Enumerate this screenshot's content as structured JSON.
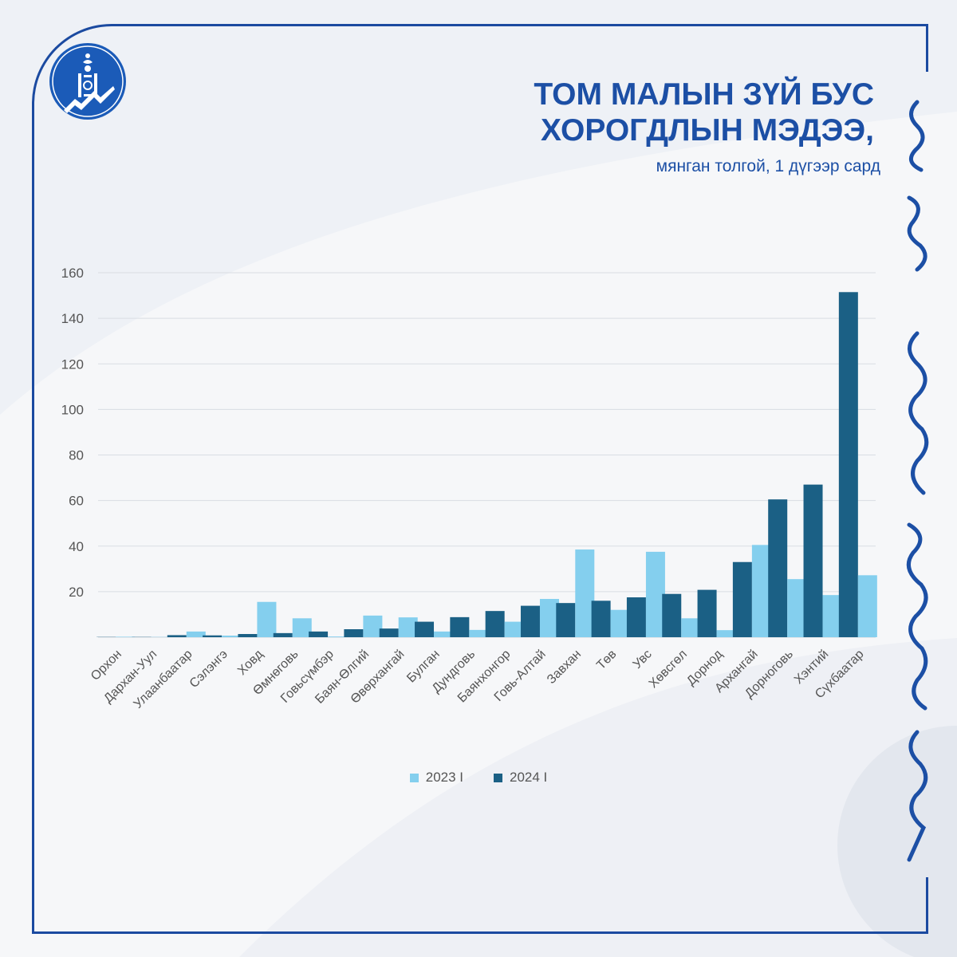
{
  "header": {
    "title_line1": "ТОМ МАЛЫН ЗҮЙ БУС",
    "title_line2": "ХОРОГДЛЫН МЭДЭЭ,",
    "subtitle": "мянган толгой, 1 дүгээр сард"
  },
  "colors": {
    "frame": "#1b4aa0",
    "title": "#1c4fa5",
    "series_2023": "#84cfee",
    "series_2024": "#1b6085"
  },
  "chart_data": {
    "type": "bar",
    "title": "ТОМ МАЛЫН ЗҮЙ БУС ХОРОГДЛЫН МЭДЭЭ,",
    "subtitle": "мянган толгой, 1 дүгээр сард",
    "categories": [
      "Орхон",
      "Дархан-Уул",
      "Улаанбаатар",
      "Сэлэнгэ",
      "Ховд",
      "Өмнөговь",
      "Говьсүмбэр",
      "Баян-Өлгий",
      "Өвөрхангай",
      "Булган",
      "Дундговь",
      "Баянхонгор",
      "Говь-Алтай",
      "Завхан",
      "Төв",
      "Увс",
      "Хөвсгөл",
      "Дорнод",
      "Архангай",
      "Дорноговь",
      "Хэнтий",
      "Сүхбаатар"
    ],
    "series": [
      {
        "name": "2023 I",
        "values": [
          0.2,
          0.1,
          2.5,
          0.7,
          15.5,
          8.3,
          0.3,
          9.5,
          8.7,
          2.5,
          3.2,
          6.8,
          16.8,
          38.5,
          12.0,
          37.5,
          8.3,
          3.1,
          40.5,
          25.5,
          18.5,
          27.2
        ]
      },
      {
        "name": "2024 I",
        "values": [
          0.1,
          0.1,
          0.9,
          0.8,
          1.4,
          1.8,
          2.5,
          3.5,
          3.8,
          6.8,
          8.8,
          11.5,
          13.8,
          15.0,
          16.0,
          17.5,
          19.0,
          20.8,
          33.0,
          60.5,
          67.0,
          151.5
        ]
      }
    ],
    "yticks": [
      20,
      40,
      60,
      80,
      100,
      120,
      140,
      160
    ],
    "ylim": [
      0,
      160
    ],
    "grid": true,
    "legend_position": "bottom"
  }
}
